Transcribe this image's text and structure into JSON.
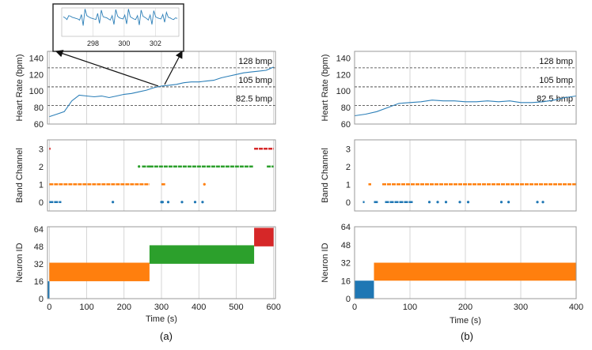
{
  "colors": {
    "hr_line": "#2c7fb8",
    "channel0": "#1f77b4",
    "channel1": "#ff7f0e",
    "channel2": "#2ca02c",
    "channel3": "#d62728",
    "threshold": "#333333",
    "grid": "#bbbbbb"
  },
  "thresholds": [
    {
      "value": 128,
      "label": "128 bmp"
    },
    {
      "value": 105,
      "label": "105 bmp"
    },
    {
      "value": 82.5,
      "label": "82.5 bmp"
    }
  ],
  "chart_data": [
    {
      "panel": "a",
      "caption": "(a)",
      "xlabel": "Time (s)",
      "xlim": [
        -5,
        605
      ],
      "xticks": [
        0,
        100,
        200,
        300,
        400,
        500,
        600
      ],
      "heart_rate": {
        "type": "line",
        "ylabel": "Heart Rate (bpm)",
        "ylim": [
          60,
          148
        ],
        "yticks": [
          60,
          80,
          100,
          120,
          140
        ],
        "x": [
          0,
          20,
          40,
          60,
          80,
          100,
          120,
          140,
          160,
          180,
          200,
          220,
          240,
          260,
          280,
          300,
          320,
          340,
          360,
          380,
          400,
          420,
          440,
          460,
          480,
          500,
          520,
          540,
          560,
          580,
          590,
          600
        ],
        "y": [
          69,
          72,
          75,
          88,
          95,
          94,
          93,
          94,
          92,
          94,
          96,
          97,
          99,
          101,
          104,
          106,
          107,
          108,
          110,
          111,
          111,
          112,
          113,
          116,
          118,
          120,
          122,
          123,
          124,
          125,
          127,
          129
        ]
      },
      "inset": {
        "type": "line",
        "xlim": [
          296,
          303.5
        ],
        "xticks": [
          298,
          300,
          302
        ],
        "signal": [
          0.2,
          0.1,
          -0.05,
          0.3,
          0.25,
          0.15,
          0.1,
          0.05,
          0.0,
          -0.1,
          0.4,
          -0.6,
          0.9,
          0.3,
          0.2,
          0.1,
          0.05,
          0.0,
          -0.05,
          0.5,
          -0.4,
          0.8,
          0.2,
          0.15,
          0.1,
          0.0,
          -0.1,
          0.3,
          -0.5,
          0.85,
          0.25,
          0.1,
          0.05,
          0.0,
          0.35,
          -0.45,
          0.9,
          0.2,
          0.1,
          0.0,
          -0.05,
          0.3,
          -0.55,
          0.8,
          0.25,
          0.15,
          0.05,
          -0.1,
          0.35,
          -0.5,
          0.75,
          0.2,
          0.1,
          0.05,
          0.0,
          0.4,
          -0.3,
          0.6,
          0.15,
          0.1,
          0.0,
          -0.05,
          0.1,
          0.05
        ]
      },
      "band_channel": {
        "type": "scatter",
        "ylabel": "Band Channel",
        "ylim": [
          -0.5,
          3.5
        ],
        "yticks": [
          0,
          1,
          2,
          3
        ],
        "segments": [
          {
            "channel": 3,
            "from": 0,
            "to": 2
          },
          {
            "channel": 3,
            "from": 548,
            "to": 600
          },
          {
            "channel": 1,
            "from": 0,
            "to": 268
          },
          {
            "channel": 1,
            "from": 300,
            "to": 310
          },
          {
            "channel": 1,
            "from": 412,
            "to": 414
          },
          {
            "channel": 2,
            "from": 248,
            "to": 265
          },
          {
            "channel": 2,
            "from": 265,
            "to": 268
          },
          {
            "channel": 2,
            "from": 268,
            "to": 545
          },
          {
            "channel": 2,
            "from": 582,
            "to": 600
          },
          {
            "channel": 0,
            "from": 0,
            "to": 32
          }
        ],
        "points": [
          {
            "channel": 0,
            "x": 170
          },
          {
            "channel": 0,
            "x": 300
          },
          {
            "channel": 0,
            "x": 303
          },
          {
            "channel": 0,
            "x": 318
          },
          {
            "channel": 0,
            "x": 355
          },
          {
            "channel": 0,
            "x": 390
          },
          {
            "channel": 0,
            "x": 410
          },
          {
            "channel": 1,
            "x": 415
          },
          {
            "channel": 2,
            "x": 240
          }
        ]
      },
      "neuron_id": {
        "type": "bar",
        "ylabel": "Neuron ID",
        "ylim": [
          0,
          66
        ],
        "yticks": [
          0,
          16,
          32,
          48,
          64
        ],
        "bars": [
          {
            "from": -5,
            "to": 0,
            "y0": 0,
            "y1": 16,
            "channel": 0
          },
          {
            "from": 0,
            "to": 268,
            "y0": 16,
            "y1": 33,
            "channel": 1
          },
          {
            "from": 268,
            "to": 548,
            "y0": 32,
            "y1": 49,
            "channel": 2
          },
          {
            "from": 548,
            "to": 600,
            "y0": 48,
            "y1": 65,
            "channel": 3
          }
        ]
      }
    },
    {
      "panel": "b",
      "caption": "(b)",
      "xlabel": "Time (s)",
      "xlim": [
        0,
        400
      ],
      "xticks": [
        0,
        100,
        200,
        300,
        400
      ],
      "heart_rate": {
        "type": "line",
        "ylabel": "Heart Rate (bpm)",
        "ylim": [
          60,
          148
        ],
        "yticks": [
          60,
          80,
          100,
          120,
          140
        ],
        "x": [
          0,
          20,
          40,
          60,
          80,
          100,
          120,
          140,
          160,
          180,
          200,
          220,
          240,
          260,
          280,
          300,
          320,
          340,
          360,
          380,
          400
        ],
        "y": [
          70,
          72,
          75,
          80,
          85,
          86,
          87,
          89,
          88,
          88,
          87,
          87,
          88,
          87,
          88,
          86,
          86,
          87,
          89,
          92,
          94
        ]
      },
      "band_channel": {
        "type": "scatter",
        "ylabel": "Band Channel",
        "ylim": [
          -0.5,
          3.5
        ],
        "yticks": [
          0,
          1,
          2,
          3
        ],
        "segments": [
          {
            "channel": 1,
            "from": 25,
            "to": 30
          },
          {
            "channel": 1,
            "from": 50,
            "to": 400
          },
          {
            "channel": 0,
            "from": 15,
            "to": 18
          },
          {
            "channel": 0,
            "from": 35,
            "to": 42
          },
          {
            "channel": 0,
            "from": 55,
            "to": 105
          }
        ],
        "points": [
          {
            "channel": 0,
            "x": 135
          },
          {
            "channel": 0,
            "x": 150
          },
          {
            "channel": 0,
            "x": 165
          },
          {
            "channel": 0,
            "x": 190
          },
          {
            "channel": 0,
            "x": 205
          },
          {
            "channel": 0,
            "x": 265
          },
          {
            "channel": 0,
            "x": 278
          },
          {
            "channel": 0,
            "x": 330
          },
          {
            "channel": 0,
            "x": 340
          }
        ]
      },
      "neuron_id": {
        "type": "bar",
        "ylabel": "Neuron ID",
        "ylim": [
          0,
          64
        ],
        "yticks": [
          0,
          16,
          32,
          48,
          64
        ],
        "bars": [
          {
            "from": 0,
            "to": 35,
            "y0": 0,
            "y1": 16,
            "channel": 0
          },
          {
            "from": 35,
            "to": 400,
            "y0": 16,
            "y1": 32,
            "channel": 1
          }
        ]
      }
    }
  ]
}
